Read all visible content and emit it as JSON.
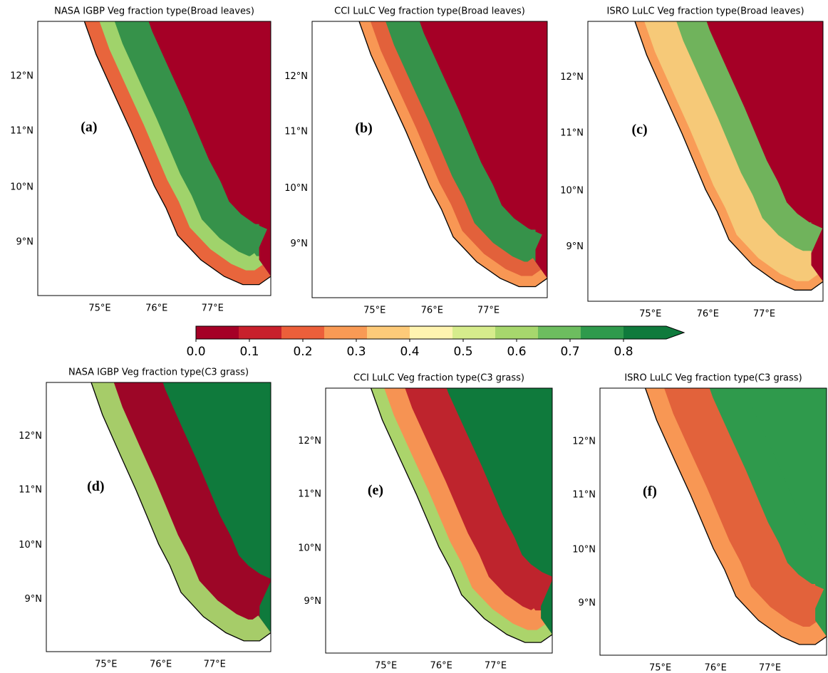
{
  "panels": [
    {
      "title": "NASA IGBP Veg fraction type(Broad leaves)",
      "label": "(a)",
      "lat_labels": [
        "12°N",
        "11°N",
        "10°N",
        "9°N"
      ],
      "lon_labels": [
        "75°E",
        "76°E",
        "77°E"
      ]
    },
    {
      "title": "CCI LuLC Veg fraction type(Broad leaves)",
      "label": "(b)",
      "lat_labels": [
        "12°N",
        "11°N",
        "10°N",
        "9°N"
      ],
      "lon_labels": [
        "75°E",
        "76°E",
        "77°E"
      ]
    },
    {
      "title": "ISRO LuLC Veg fraction type(Broad leaves)",
      "label": "(c)",
      "lat_labels": [
        "12°N",
        "11°N",
        "10°N",
        "9°N"
      ],
      "lon_labels": [
        "75°E",
        "76°E",
        "77°E"
      ]
    },
    {
      "title": "NASA IGBP Veg fraction type(C3 grass)",
      "label": "(d)",
      "lat_labels": [
        "12°N",
        "11°N",
        "10°N",
        "9°N"
      ],
      "lon_labels": [
        "75°E",
        "76°E",
        "77°E"
      ]
    },
    {
      "title": "CCI LuLC Veg fraction type(C3 grass)",
      "label": "(e)",
      "lat_labels": [
        "12°N",
        "11°N",
        "10°N",
        "9°N"
      ],
      "lon_labels": [
        "75°E",
        "76°E",
        "77°E"
      ]
    },
    {
      "title": "ISRO LuLC Veg fraction type(C3 grass)",
      "label": "(f)",
      "lat_labels": [
        "12°N",
        "11°N",
        "10°N",
        "9°N"
      ],
      "lon_labels": [
        "75°E",
        "76°E",
        "77°E"
      ]
    }
  ],
  "colorbar": {
    "colors": [
      "#a50026",
      "#c8202c",
      "#ec5f3a",
      "#f99a55",
      "#fdca79",
      "#fff4b0",
      "#d6ec8c",
      "#a7d76d",
      "#6dbd5f",
      "#2f9a4c",
      "#0f7a3c"
    ],
    "range": [
      0,
      0.88
    ],
    "ticks": [
      {
        "value": 0,
        "label": "0.0"
      },
      0.1,
      0.2,
      0.3,
      0.4,
      0.5,
      0.6,
      0.7,
      0.8
    ]
  }
}
